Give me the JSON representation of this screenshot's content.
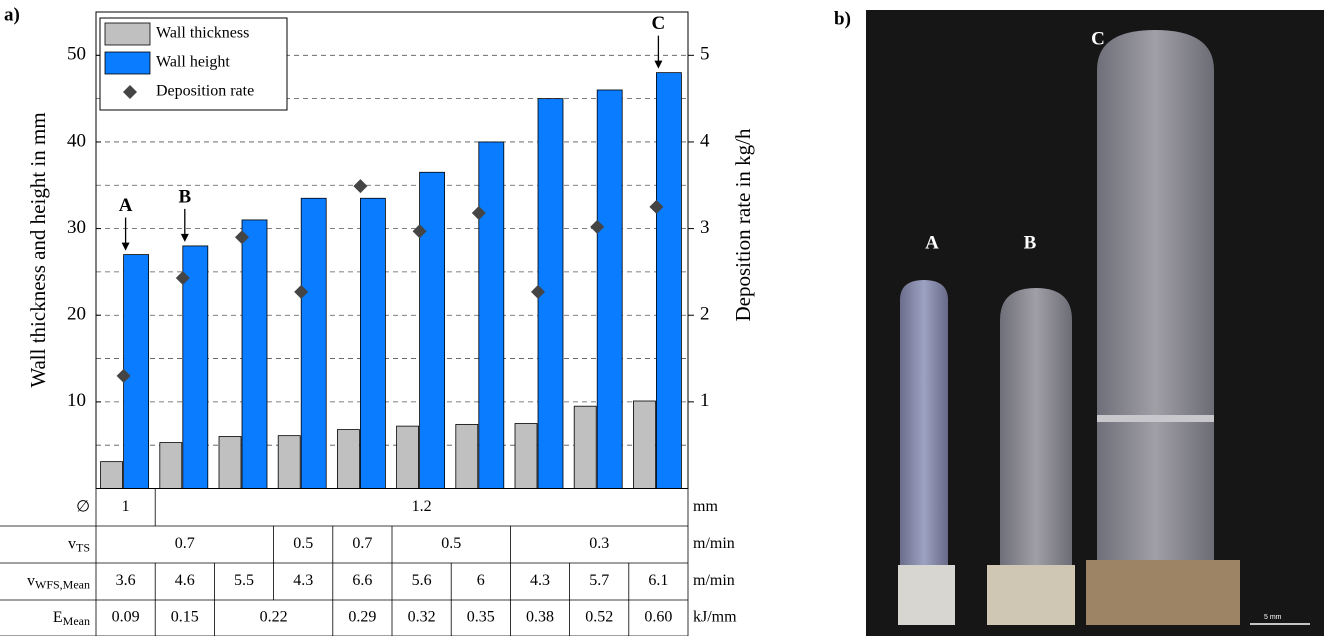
{
  "panel_a_label": "a)",
  "chart_data": {
    "type": "bar",
    "y_label": "Wall thickness and height in mm",
    "y2_label": "Deposition rate in kg/h",
    "categories": [
      null,
      null,
      null,
      null,
      null,
      null,
      null,
      null,
      null,
      null
    ],
    "series": [
      {
        "name": "Wall thickness",
        "color": "#c0c0c0",
        "values": [
          3.1,
          5.3,
          6.0,
          6.1,
          6.8,
          7.2,
          7.4,
          7.5,
          9.5,
          10.1
        ]
      },
      {
        "name": "Wall height",
        "color": "#0a7cff",
        "values": [
          27.0,
          28.0,
          31.0,
          33.5,
          33.5,
          36.5,
          40.0,
          45.0,
          46.0,
          48.0
        ]
      },
      {
        "name": "Deposition rate",
        "color": "#454545",
        "marker": "diamond",
        "axis": "y2",
        "values": [
          1.3,
          2.43,
          2.9,
          2.27,
          3.49,
          2.97,
          3.18,
          2.27,
          3.02,
          3.25
        ]
      }
    ],
    "ylim": [
      0,
      55
    ],
    "yticks": [
      10,
      20,
      30,
      40,
      50
    ],
    "y2lim": [
      0,
      5.5
    ],
    "y2ticks": [
      1,
      2,
      3,
      4,
      5
    ],
    "grid": true,
    "legend": "upper left",
    "annotations": [
      {
        "text": "A",
        "index": 0
      },
      {
        "text": "B",
        "index": 1
      },
      {
        "text": "C",
        "index": 9
      }
    ]
  },
  "table": {
    "rows": [
      {
        "label": {
          "main": "∅"
        },
        "cells": [
          {
            "text": "1",
            "span": 1
          },
          {
            "text": "1.2",
            "span": 9
          }
        ],
        "unit": "mm"
      },
      {
        "label": {
          "main": "v",
          "sub": "TS"
        },
        "cells": [
          {
            "text": "0.7",
            "span": 3
          },
          {
            "text": "0.5",
            "span": 1
          },
          {
            "text": "0.7",
            "span": 1
          },
          {
            "text": "0.5",
            "span": 2
          },
          {
            "text": "0.3",
            "span": 3
          }
        ],
        "unit": "m/min"
      },
      {
        "label": {
          "main": "v",
          "sub": "WFS,Mean"
        },
        "cells": [
          {
            "text": "3.6",
            "span": 1
          },
          {
            "text": "4.6",
            "span": 1
          },
          {
            "text": "5.5",
            "span": 1
          },
          {
            "text": "4.3",
            "span": 1
          },
          {
            "text": "6.6",
            "span": 1
          },
          {
            "text": "5.6",
            "span": 1
          },
          {
            "text": "6",
            "span": 1
          },
          {
            "text": "4.3",
            "span": 1
          },
          {
            "text": "5.7",
            "span": 1
          },
          {
            "text": "6.1",
            "span": 1
          }
        ],
        "unit": "m/min"
      },
      {
        "label": {
          "main": "E",
          "sub": "Mean"
        },
        "cells": [
          {
            "text": "0.09",
            "span": 1
          },
          {
            "text": "0.15",
            "span": 1
          },
          {
            "text": "0.22",
            "span": 2
          },
          {
            "text": "0.29",
            "span": 1
          },
          {
            "text": "0.32",
            "span": 1
          },
          {
            "text": "0.35",
            "span": 1
          },
          {
            "text": "0.38",
            "span": 1
          },
          {
            "text": "0.52",
            "span": 1
          },
          {
            "text": "0.60",
            "span": 1
          }
        ],
        "unit": "kJ/mm"
      }
    ]
  },
  "photo": {
    "panel_label": "b)",
    "labels": [
      "A",
      "B",
      "C"
    ],
    "scale_bar": "5 mm"
  }
}
